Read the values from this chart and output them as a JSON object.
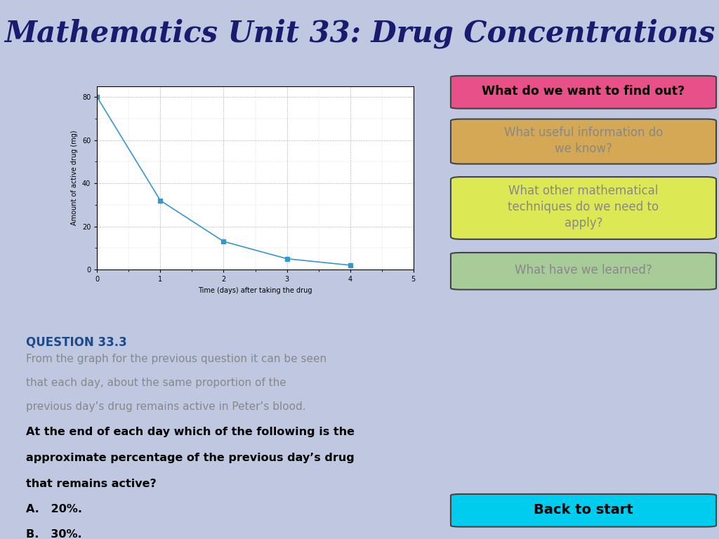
{
  "title": "Mathematics Unit 33: Drug Concentrations",
  "title_bg_color": "#e8dfa8",
  "title_text_color": "#1a1a6e",
  "main_bg_color": "#bfc8e0",
  "left_panel_bg": "#ffffff",
  "graph_x": [
    0,
    1,
    2,
    3,
    4
  ],
  "graph_y": [
    80,
    32,
    13,
    5,
    2
  ],
  "graph_color": "#3399cc",
  "graph_marker": "s",
  "graph_xlabel": "Time (days) after taking the drug",
  "graph_ylabel": "Amount of active drug (mg)",
  "graph_xlim": [
    0,
    5
  ],
  "graph_ylim": [
    0,
    85
  ],
  "graph_xticks": [
    0,
    1,
    2,
    3,
    4,
    5
  ],
  "graph_yticks": [
    0,
    20,
    40,
    60,
    80
  ],
  "question_title": "QUESTION 33.3",
  "btn1_text": "What do we want to find out?",
  "btn1_bg": "#e8508a",
  "btn1_fg": "#000000",
  "btn2_text": "What useful information do\nwe know?",
  "btn2_bg": "#d4a855",
  "btn2_fg": "#888888",
  "btn3_text": "What other mathematical\ntechniques do we need to\napply?",
  "btn3_bg": "#dde855",
  "btn3_fg": "#888888",
  "btn4_text": "What have we learned?",
  "btn4_bg": "#a8cc98",
  "btn4_fg": "#888888",
  "btn5_text": "Back to start",
  "btn5_bg": "#00ccee",
  "btn5_fg": "#000000"
}
